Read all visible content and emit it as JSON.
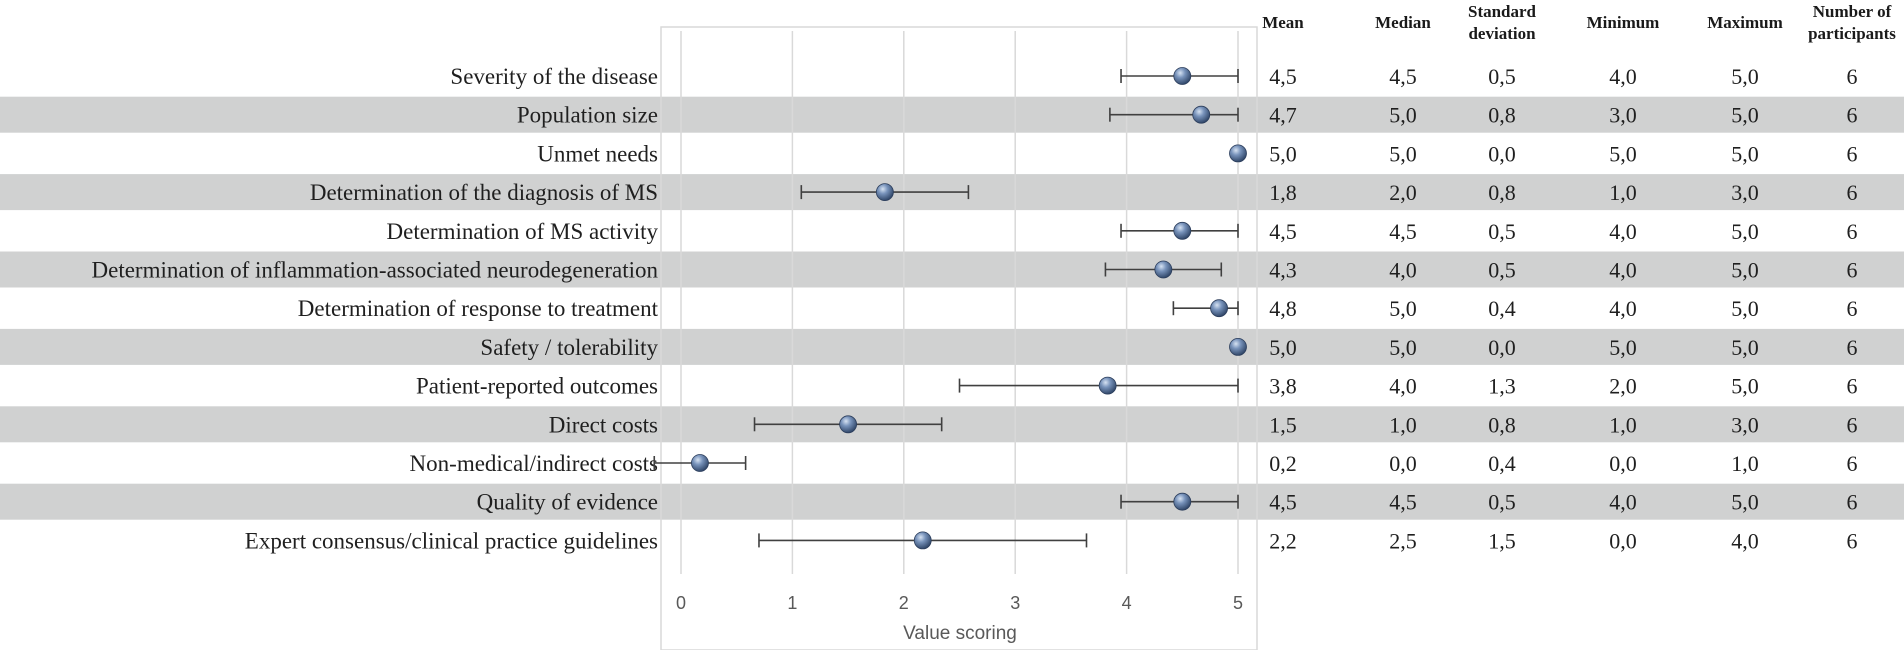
{
  "chart_data": {
    "type": "scatter",
    "title": "",
    "xlabel": "Value scoring",
    "ylabel": "",
    "xlim": [
      0,
      5
    ],
    "xticks": [
      "0",
      "1",
      "2",
      "3",
      "4",
      "5"
    ],
    "categories": [
      "Severity of the disease",
      "Population size",
      "Unmet needs",
      "Determination of the diagnosis of MS",
      "Determination of MS activity",
      "Determination of inflammation-associated neurodegeneration",
      "Determination of response to treatment",
      "Safety / tolerability",
      "Patient-reported outcomes",
      "Direct costs",
      "Non-medical/indirect costs",
      "Quality of evidence",
      "Expert consensus/clinical practice guidelines"
    ],
    "series": [
      {
        "name": "Mean",
        "values": [
          4.5,
          4.67,
          5.0,
          1.83,
          4.5,
          4.33,
          4.83,
          5.0,
          3.83,
          1.5,
          0.17,
          4.5,
          2.17
        ],
        "error_minus": [
          0.55,
          0.82,
          0.0,
          0.75,
          0.55,
          0.52,
          0.41,
          0.0,
          1.33,
          0.84,
          0.41,
          0.55,
          1.47
        ],
        "error_plus": [
          0.5,
          0.33,
          0.0,
          0.75,
          0.5,
          0.52,
          0.17,
          0.0,
          1.17,
          0.84,
          0.41,
          0.5,
          1.47
        ]
      }
    ],
    "table": {
      "headers": [
        "Mean",
        "Median",
        "Standard deviation",
        "Minimum",
        "Maximum",
        "Number of participants"
      ],
      "rows": [
        [
          "4,5",
          "4,5",
          "0,5",
          "4,0",
          "5,0",
          "6"
        ],
        [
          "4,7",
          "5,0",
          "0,8",
          "3,0",
          "5,0",
          "6"
        ],
        [
          "5,0",
          "5,0",
          "0,0",
          "5,0",
          "5,0",
          "6"
        ],
        [
          "1,8",
          "2,0",
          "0,8",
          "1,0",
          "3,0",
          "6"
        ],
        [
          "4,5",
          "4,5",
          "0,5",
          "4,0",
          "5,0",
          "6"
        ],
        [
          "4,3",
          "4,0",
          "0,5",
          "4,0",
          "5,0",
          "6"
        ],
        [
          "4,8",
          "5,0",
          "0,4",
          "4,0",
          "5,0",
          "6"
        ],
        [
          "5,0",
          "5,0",
          "0,0",
          "5,0",
          "5,0",
          "6"
        ],
        [
          "3,8",
          "4,0",
          "1,3",
          "2,0",
          "5,0",
          "6"
        ],
        [
          "1,5",
          "1,0",
          "0,8",
          "1,0",
          "3,0",
          "6"
        ],
        [
          "0,2",
          "0,0",
          "0,4",
          "0,0",
          "1,0",
          "6"
        ],
        [
          "4,5",
          "4,5",
          "0,5",
          "4,0",
          "5,0",
          "6"
        ],
        [
          "2,2",
          "2,5",
          "1,5",
          "0,0",
          "4,0",
          "6"
        ]
      ]
    },
    "colors": {
      "marker": "#5a7aa6",
      "band": "#d0d1d1",
      "error": "#404040"
    }
  }
}
